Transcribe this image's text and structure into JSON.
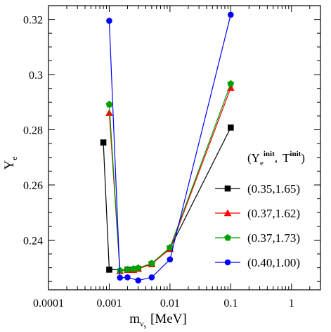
{
  "chart_data": {
    "type": "line",
    "xlabel": "m",
    "xlabel_sub": "ν",
    "xlabel_subsub": "s",
    "xlabel_unit": "[MeV]",
    "ylabel": "Y",
    "ylabel_sub": "e",
    "x_scale": "log",
    "xlim": [
      0.0001,
      3
    ],
    "ylim": [
      0.222,
      0.325
    ],
    "grid": false,
    "legend_placement": "right",
    "legend_title": {
      "open": "(",
      "y": "Y",
      "y_sub": "e",
      "y_sup": "init",
      "sep": ",",
      "t": "T",
      "t_sup": "init",
      "close": ")"
    },
    "x_ticks": [
      {
        "value": 0.0001,
        "label": "0.0001"
      },
      {
        "value": 0.001,
        "label": "0.001"
      },
      {
        "value": 0.01,
        "label": "0.01"
      },
      {
        "value": 0.1,
        "label": "0.1"
      },
      {
        "value": 1,
        "label": "1"
      }
    ],
    "y_ticks": [
      {
        "value": 0.24,
        "label": "0.24"
      },
      {
        "value": 0.26,
        "label": "0.26"
      },
      {
        "value": 0.28,
        "label": "0.28"
      },
      {
        "value": 0.3,
        "label": "0.3"
      },
      {
        "value": 0.32,
        "label": "0.32"
      }
    ],
    "series": [
      {
        "name": "(0.35,1.65)",
        "color": "#000000",
        "marker": "square",
        "x": [
          0.0008,
          0.001,
          0.002,
          0.003,
          0.005,
          0.01,
          0.1
        ],
        "y": [
          0.2754,
          0.2293,
          0.2293,
          0.2296,
          0.2313,
          0.237,
          0.2808
        ]
      },
      {
        "name": "(0.37,1.62)",
        "color": "#ff0000",
        "marker": "triangle",
        "x": [
          0.001,
          0.0015,
          0.002,
          0.0025,
          0.003,
          0.005,
          0.01,
          0.1
        ],
        "y": [
          0.2861,
          0.2288,
          0.2292,
          0.2292,
          0.2296,
          0.2314,
          0.2368,
          0.2952
        ]
      },
      {
        "name": "(0.37,1.73)",
        "color": "#00a000",
        "marker": "pentagon",
        "x": [
          0.001,
          0.0015,
          0.002,
          0.0025,
          0.003,
          0.005,
          0.01,
          0.1
        ],
        "y": [
          0.2892,
          0.229,
          0.2294,
          0.2296,
          0.2299,
          0.2316,
          0.2373,
          0.2967
        ]
      },
      {
        "name": "(0.40,1.00)",
        "color": "#0000ff",
        "marker": "circle",
        "x": [
          0.001,
          0.0015,
          0.002,
          0.003,
          0.005,
          0.01,
          0.1
        ],
        "y": [
          0.3195,
          0.2264,
          0.2265,
          0.2254,
          0.2265,
          0.233,
          0.3217
        ]
      }
    ]
  }
}
